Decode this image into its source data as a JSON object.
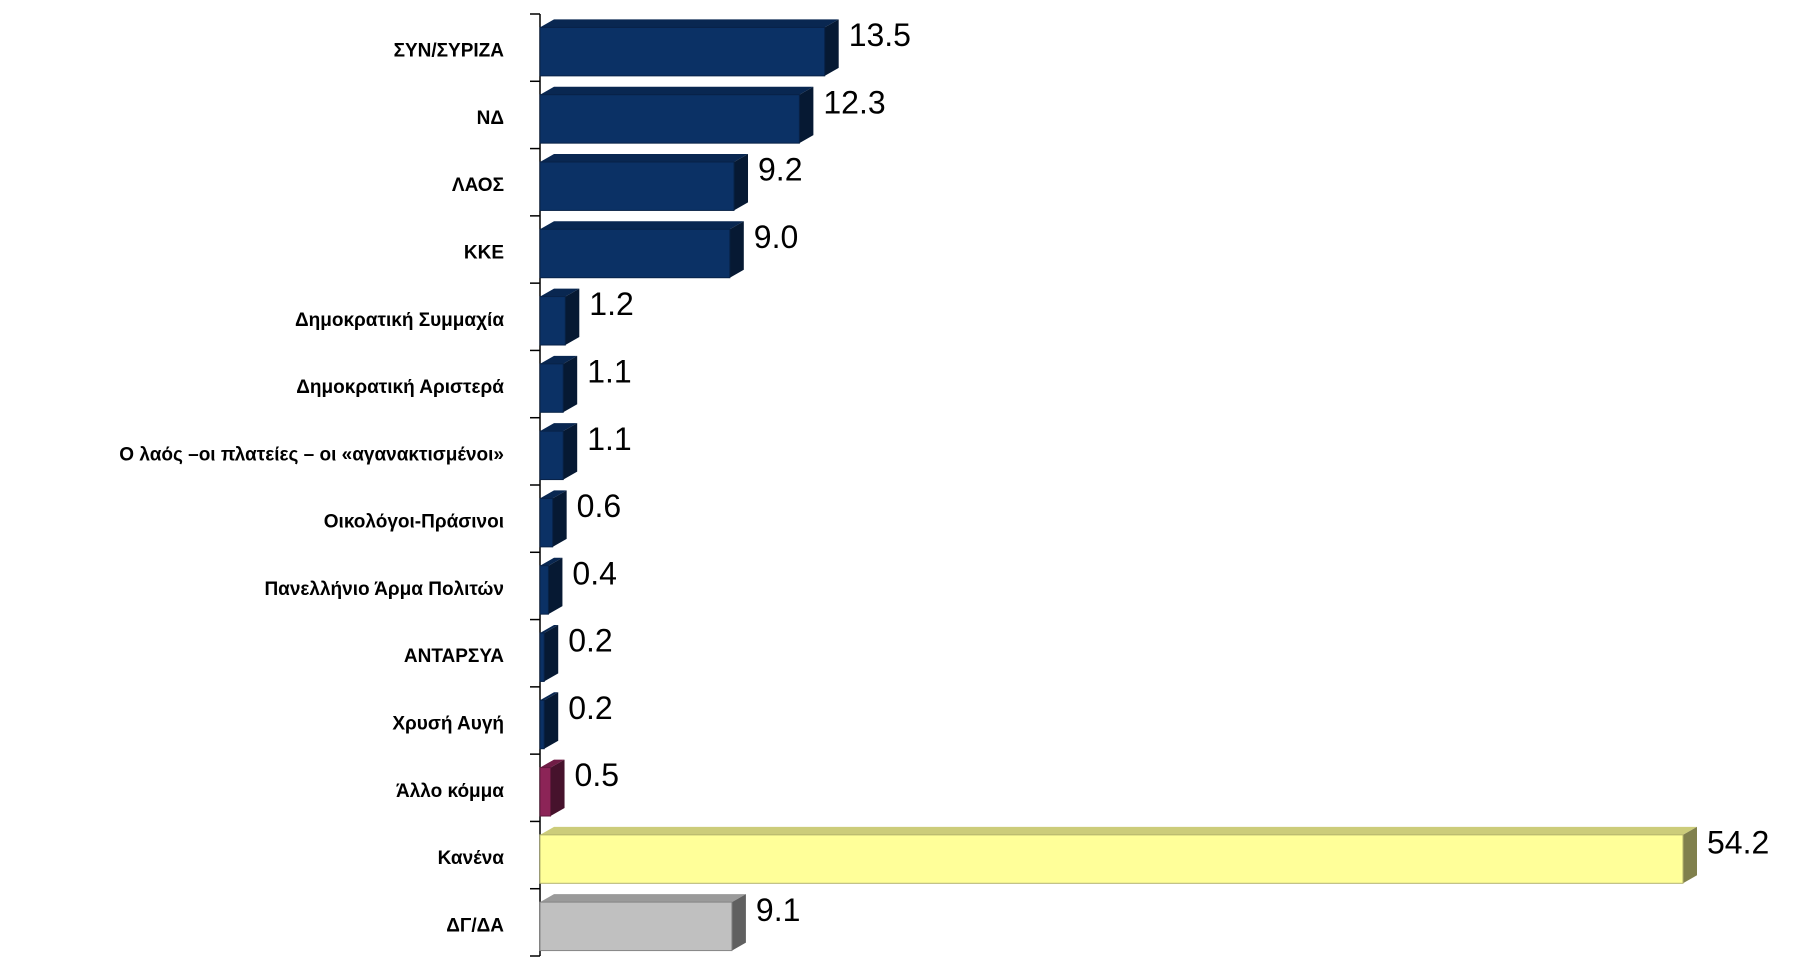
{
  "chart_data": {
    "type": "bar",
    "orientation": "horizontal",
    "categories": [
      "ΣΥΝ/ΣΥΡΙΖΑ",
      "ΝΔ",
      "ΛΑΟΣ",
      "ΚΚΕ",
      "Δημοκρατική Συμμαχία",
      "Δημοκρατική Αριστερά",
      "Ο λαός –οι πλατείες – οι «αγανακτισμένοι»",
      "Οικολόγοι-Πράσινοι",
      "Πανελλήνιο Άρμα Πολιτών",
      "ΑΝΤΑΡΣΥΑ",
      "Χρυσή Αυγή",
      "Άλλο κόμμα",
      "Κανένα",
      "ΔΓ/ΔΑ"
    ],
    "values": [
      13.5,
      12.3,
      9.2,
      9.0,
      1.2,
      1.1,
      1.1,
      0.6,
      0.4,
      0.2,
      0.2,
      0.5,
      54.2,
      9.1
    ],
    "value_labels": [
      "13.5",
      "12.3",
      "9.2",
      "9.0",
      "1.2",
      "1.1",
      "1.1",
      "0.6",
      "0.4",
      "0.2",
      "0.2",
      "0.5",
      "54.2",
      "9.1"
    ],
    "colors": [
      "#0b3165",
      "#0b3165",
      "#0b3165",
      "#0b3165",
      "#0b3165",
      "#0b3165",
      "#0b3165",
      "#0b3165",
      "#0b3165",
      "#0b3165",
      "#0b3165",
      "#8c2457",
      "#ffff99",
      "#c0c0c0"
    ]
  }
}
